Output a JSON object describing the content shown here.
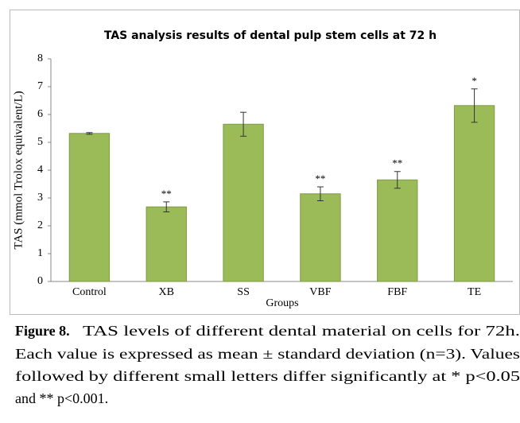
{
  "chart_data": {
    "type": "bar",
    "title": "TAS analysis results of dental pulp stem cells at 72 h",
    "x_label": "Groups",
    "y_label": "TAS (mmol Trolox equivalent/L)",
    "categories": [
      "Control",
      "XB",
      "SS",
      "VBF",
      "FBF",
      "TE"
    ],
    "values": [
      5.32,
      2.68,
      5.65,
      3.15,
      3.65,
      6.32
    ],
    "errors": [
      0.03,
      0.18,
      0.43,
      0.25,
      0.3,
      0.6
    ],
    "significance": [
      null,
      "**",
      null,
      "**",
      "**",
      "*"
    ],
    "color": "#9bbb59",
    "ylim": [
      0,
      8
    ],
    "yticks": [
      0,
      1,
      2,
      3,
      4,
      5,
      6,
      7,
      8
    ],
    "grid": false
  },
  "caption": {
    "label": "Figure 8.",
    "lines": [
      "TAS levels of different dental material on cells for 72h.",
      "Each value is expressed as mean ± standard deviation (n=3). Values",
      "followed by different small letters differ significantly at * p<0.05",
      "and ** p<0.001."
    ]
  }
}
